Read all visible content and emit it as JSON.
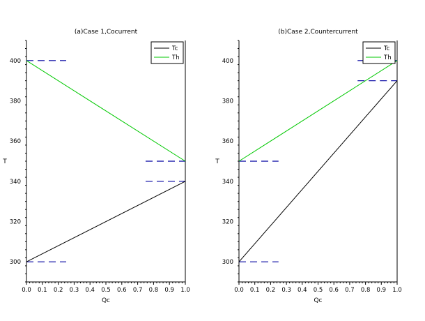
{
  "chart_data": [
    {
      "type": "line",
      "title": "(a)Case 1,Cocurrent",
      "xlabel": "Qc",
      "ylabel": "T",
      "xlim": [
        0.0,
        1.0
      ],
      "ylim": [
        290,
        410
      ],
      "xticks": [
        0.0,
        0.1,
        0.2,
        0.3,
        0.4,
        0.5,
        0.6,
        0.7,
        0.8,
        0.9,
        1.0
      ],
      "xtick_labels": [
        "0.0",
        "0.1",
        "0.2",
        "0.3",
        "0.4",
        "0.5",
        "0.6",
        "0.7",
        "0.8",
        "0.9",
        "1.0"
      ],
      "yticks": [
        300,
        320,
        340,
        360,
        380,
        400
      ],
      "ytick_labels": [
        "300",
        "320",
        "340",
        "360",
        "380",
        "400"
      ],
      "legend_position": "top-right",
      "series": [
        {
          "name": "Tc",
          "color": "#000000",
          "x": [
            0.0,
            1.0
          ],
          "y": [
            300,
            340
          ]
        },
        {
          "name": "Th",
          "color": "#00c800",
          "x": [
            0.0,
            1.0
          ],
          "y": [
            400,
            350
          ]
        }
      ],
      "reference_lines": [
        {
          "color": "#0000a0",
          "y": 400,
          "x": [
            0.0,
            0.25
          ]
        },
        {
          "color": "#0000a0",
          "y": 300,
          "x": [
            0.0,
            0.25
          ]
        },
        {
          "color": "#0000a0",
          "y": 350,
          "x": [
            0.75,
            1.0
          ]
        },
        {
          "color": "#0000a0",
          "y": 340,
          "x": [
            0.75,
            1.0
          ]
        }
      ]
    },
    {
      "type": "line",
      "title": "(b)Case 2,Countercurrent",
      "xlabel": "Qc",
      "ylabel": "T",
      "xlim": [
        0.0,
        1.0
      ],
      "ylim": [
        290,
        410
      ],
      "xticks": [
        0.0,
        0.1,
        0.2,
        0.3,
        0.4,
        0.5,
        0.6,
        0.7,
        0.8,
        0.9,
        1.0
      ],
      "xtick_labels": [
        "0.0",
        "0.1",
        "0.2",
        "0.3",
        "0.4",
        "0.5",
        "0.6",
        "0.7",
        "0.8",
        "0.9",
        "1.0"
      ],
      "yticks": [
        300,
        320,
        340,
        360,
        380,
        400
      ],
      "ytick_labels": [
        "300",
        "320",
        "340",
        "360",
        "380",
        "400"
      ],
      "legend_position": "top-right",
      "series": [
        {
          "name": "Tc",
          "color": "#000000",
          "x": [
            0.0,
            1.0
          ],
          "y": [
            300,
            390
          ]
        },
        {
          "name": "Th",
          "color": "#00c800",
          "x": [
            0.0,
            1.0
          ],
          "y": [
            350,
            400
          ]
        }
      ],
      "reference_lines": [
        {
          "color": "#0000a0",
          "y": 350,
          "x": [
            0.0,
            0.25
          ]
        },
        {
          "color": "#0000a0",
          "y": 300,
          "x": [
            0.0,
            0.25
          ]
        },
        {
          "color": "#0000a0",
          "y": 400,
          "x": [
            0.75,
            1.0
          ]
        },
        {
          "color": "#0000a0",
          "y": 390,
          "x": [
            0.75,
            1.0
          ]
        }
      ]
    }
  ]
}
